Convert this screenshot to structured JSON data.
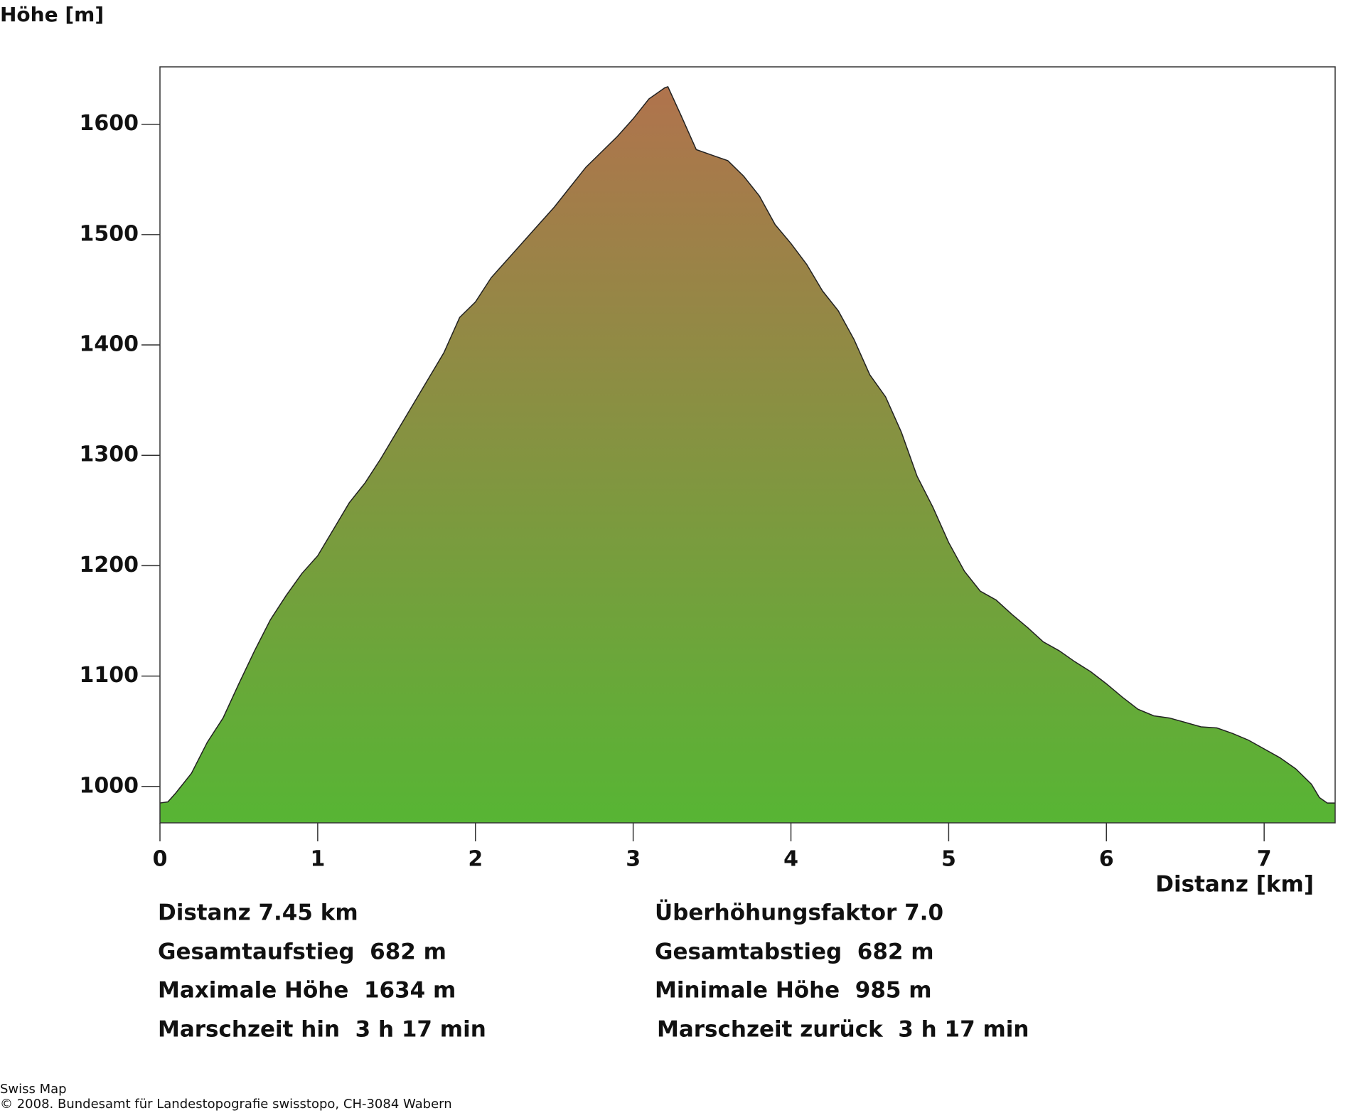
{
  "chart_data": {
    "type": "area",
    "y_label": "Höhe [m]",
    "x_label": "Distanz [km]",
    "x": [
      0,
      0.05,
      0.1,
      0.2,
      0.3,
      0.4,
      0.5,
      0.6,
      0.7,
      0.8,
      0.9,
      1.0,
      1.1,
      1.2,
      1.3,
      1.4,
      1.5,
      1.6,
      1.7,
      1.8,
      1.9,
      2.0,
      2.1,
      2.2,
      2.3,
      2.4,
      2.5,
      2.6,
      2.7,
      2.8,
      2.9,
      3.0,
      3.1,
      3.2,
      3.22,
      3.3,
      3.4,
      3.5,
      3.6,
      3.7,
      3.8,
      3.9,
      4.0,
      4.1,
      4.2,
      4.3,
      4.4,
      4.5,
      4.6,
      4.7,
      4.8,
      4.9,
      5.0,
      5.1,
      5.2,
      5.3,
      5.4,
      5.5,
      5.6,
      5.7,
      5.8,
      5.9,
      6.0,
      6.1,
      6.2,
      6.3,
      6.4,
      6.5,
      6.6,
      6.7,
      6.8,
      6.9,
      7.0,
      7.1,
      7.2,
      7.3,
      7.35,
      7.4,
      7.45
    ],
    "values": [
      985,
      986,
      994,
      1012,
      1040,
      1062,
      1093,
      1123,
      1151,
      1173,
      1193,
      1209,
      1233,
      1257,
      1275,
      1297,
      1321,
      1345,
      1369,
      1393,
      1425,
      1439,
      1461,
      1477,
      1493,
      1509,
      1525,
      1543,
      1561,
      1575,
      1589,
      1605,
      1623,
      1633,
      1634,
      1609,
      1577,
      1572,
      1567,
      1553,
      1535,
      1509,
      1492,
      1473,
      1449,
      1431,
      1405,
      1373,
      1353,
      1321,
      1281,
      1253,
      1221,
      1195,
      1177,
      1169,
      1156,
      1144,
      1131,
      1123,
      1113,
      1104,
      1093,
      1081,
      1070,
      1064,
      1062,
      1058,
      1054,
      1053,
      1048,
      1042,
      1034,
      1026,
      1016,
      1002,
      990,
      985,
      985
    ],
    "color_top": "#b0734d",
    "color_bottom": "#57b534",
    "xlim": [
      0,
      7.45
    ],
    "ylim": [
      967,
      1652
    ],
    "xticks": [
      0,
      1,
      2,
      3,
      4,
      5,
      6,
      7
    ],
    "yticks": [
      1000,
      1100,
      1200,
      1300,
      1400,
      1500,
      1600
    ],
    "stats": [
      [
        "Distanz 7.45 km",
        "Überhöhungsfaktor 7.0"
      ],
      [
        "Gesamtaufstieg  682 m",
        "Gesamtabstieg  682 m"
      ],
      [
        "Maximale Höhe  1634 m",
        "Minimale Höhe  985 m"
      ],
      [
        "Marschzeit hin  3 h 17 min",
        "Marschzeit zurück  3 h 17 min"
      ]
    ],
    "footer": [
      "Swiss Map",
      "© 2008. Bundesamt für Landestopografie swisstopo, CH-3084 Wabern"
    ]
  }
}
